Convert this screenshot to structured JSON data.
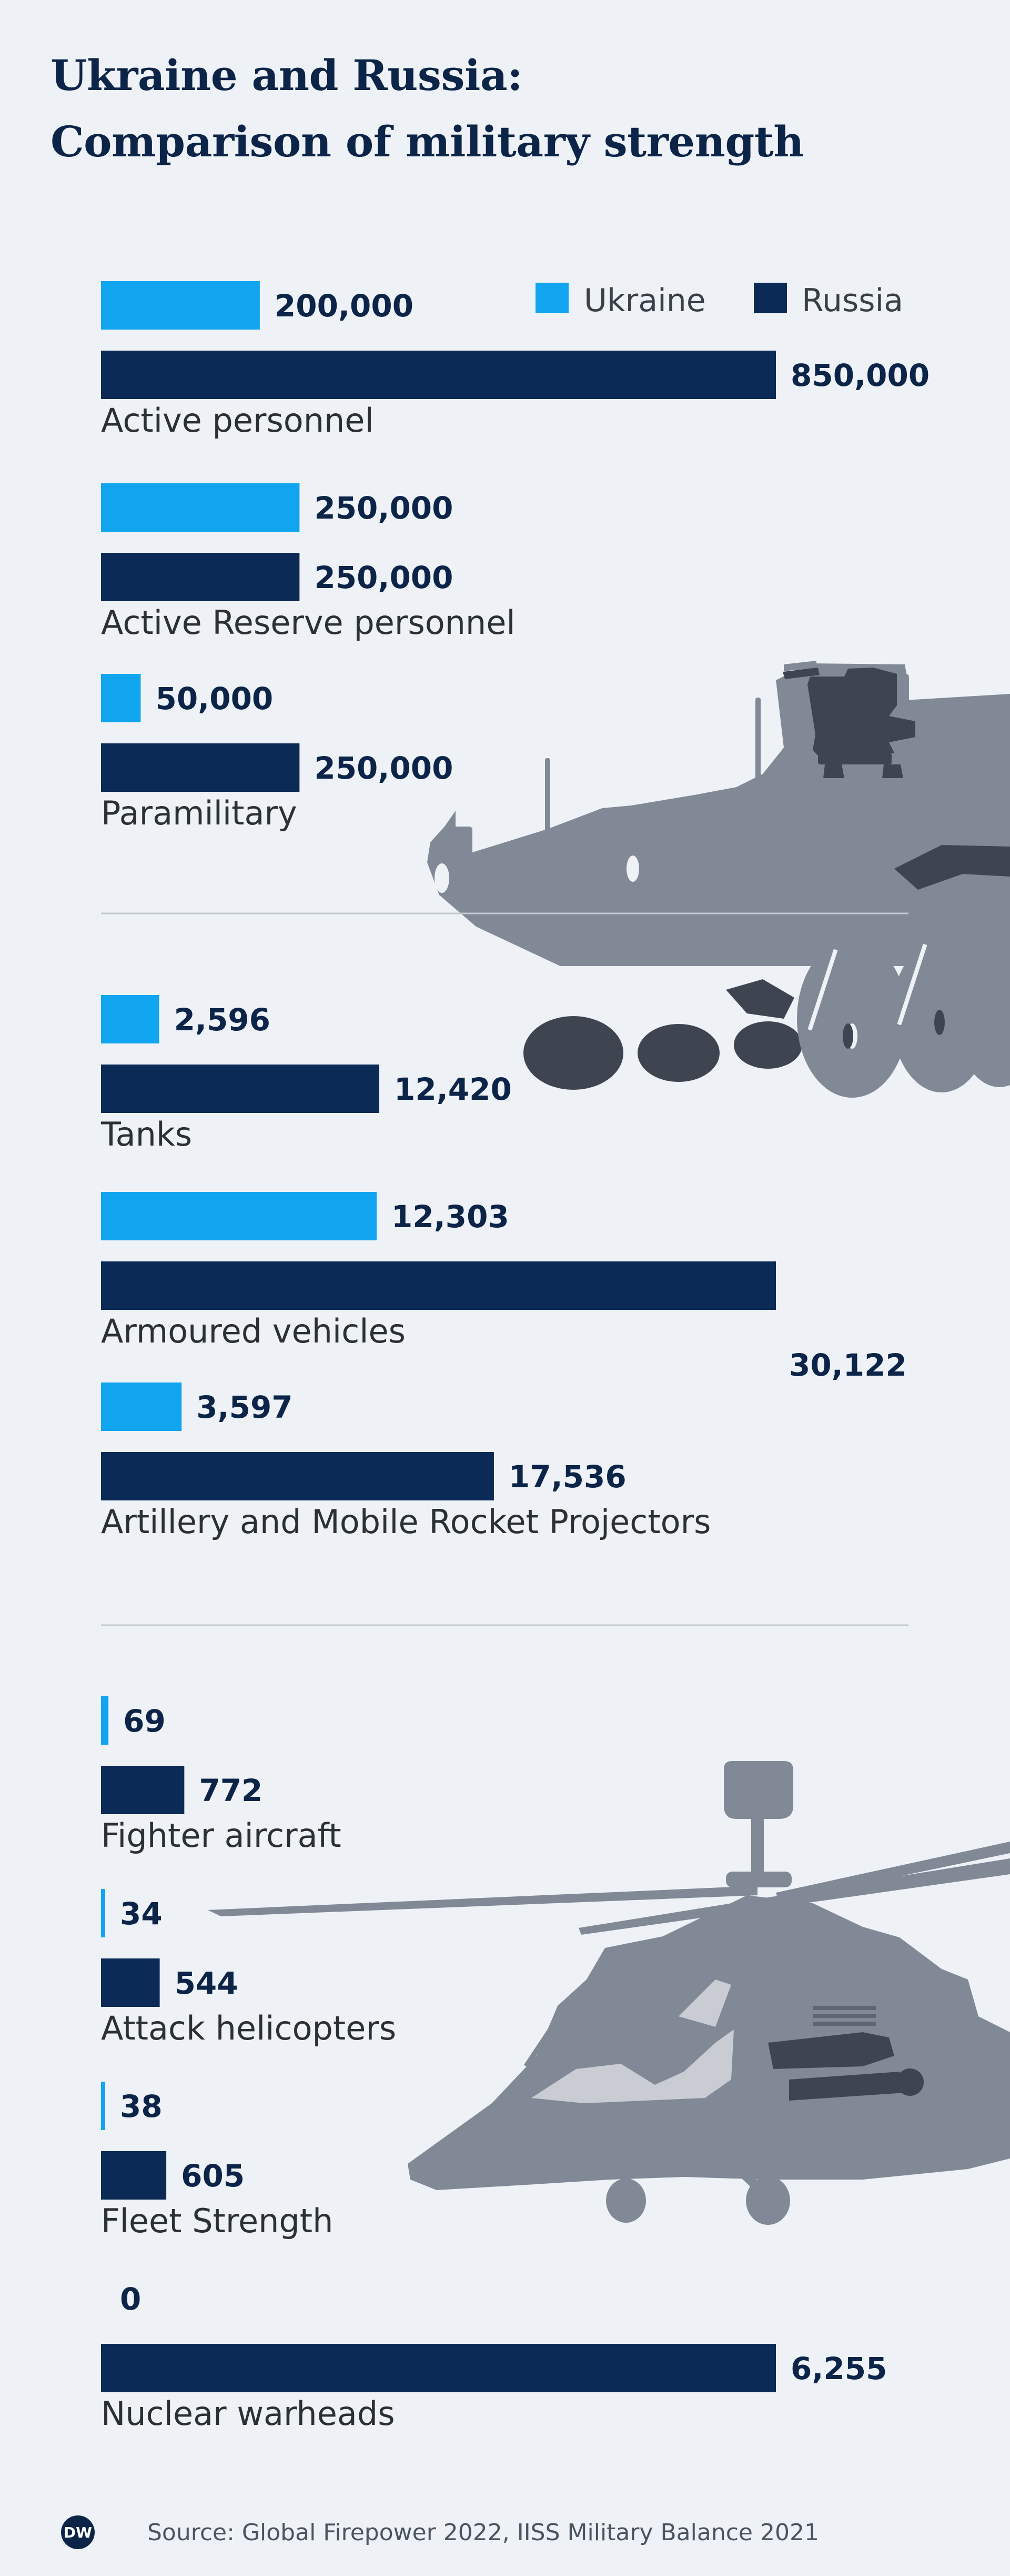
{
  "title": {
    "line1": "Ukraine and Russia:",
    "line2": "Comparison of military strength"
  },
  "legend": [
    {
      "name": "Ukraine",
      "color": "#11a5f0"
    },
    {
      "name": "Russia",
      "color": "#0b2a55"
    }
  ],
  "source": "Source: Global Firepower 2022, IISS Military Balance 2021",
  "logo": {
    "text": "DW",
    "icon": "dw-logo-icon"
  },
  "illustrations": [
    "armoured-vehicle-icon",
    "attack-helicopter-icon"
  ],
  "colors": {
    "background": "#eef2f6",
    "ukraine": "#11a5f0",
    "russia": "#0b2a55",
    "text": "#0b2447",
    "divider": "#c3cad3",
    "illustration": "#808995",
    "illustration_dark": "#3f4550"
  },
  "chart_data": [
    {
      "type": "bar",
      "orientation": "horizontal",
      "categories": [
        "Active personnel",
        "Active Reserve personnel",
        "Paramilitary"
      ],
      "series": [
        {
          "name": "Ukraine",
          "values": [
            200000,
            250000,
            50000
          ],
          "labels": [
            "200,000",
            "250,000",
            "50,000"
          ]
        },
        {
          "name": "Russia",
          "values": [
            850000,
            250000,
            250000
          ],
          "labels": [
            "850,000",
            "250,000",
            "250,000"
          ]
        }
      ],
      "xlim": [
        0,
        850000
      ],
      "grid": false,
      "legend": "top-right"
    },
    {
      "type": "bar",
      "orientation": "horizontal",
      "categories": [
        "Tanks",
        "Armoured vehicles",
        "Artillery and Mobile Rocket Projectors"
      ],
      "series": [
        {
          "name": "Ukraine",
          "values": [
            2596,
            12303,
            3597
          ],
          "labels": [
            "2,596",
            "12,303",
            "3,597"
          ]
        },
        {
          "name": "Russia",
          "values": [
            12420,
            30122,
            17536
          ],
          "labels": [
            "12,420",
            "30,122",
            "17,536"
          ]
        }
      ],
      "xlim": [
        0,
        30122
      ],
      "grid": false
    },
    {
      "type": "bar",
      "orientation": "horizontal",
      "categories": [
        "Fighter aircraft",
        "Attack helicopters",
        "Fleet Strength",
        "Nuclear warheads"
      ],
      "series": [
        {
          "name": "Ukraine",
          "values": [
            69,
            34,
            38,
            0
          ],
          "labels": [
            "69",
            "34",
            "38",
            "0"
          ]
        },
        {
          "name": "Russia",
          "values": [
            772,
            544,
            605,
            6255
          ],
          "labels": [
            "772",
            "544",
            "605",
            "6,255"
          ]
        }
      ],
      "xlim": [
        0,
        6255
      ],
      "grid": false
    }
  ]
}
